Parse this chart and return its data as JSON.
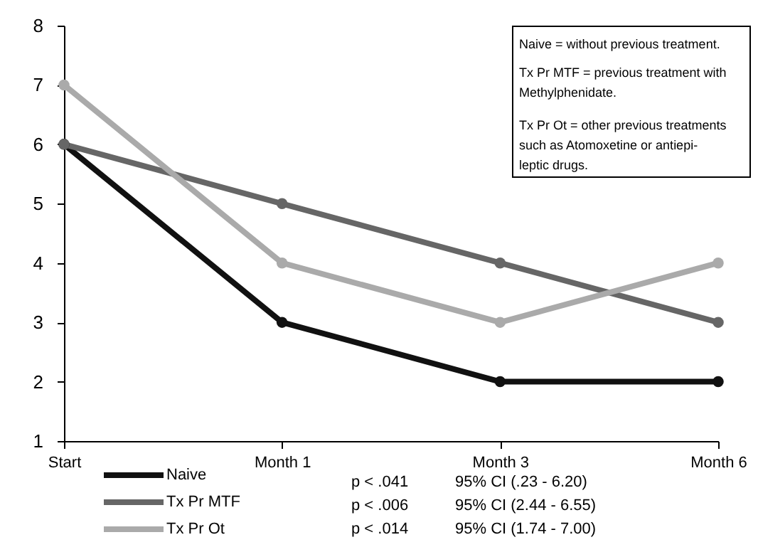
{
  "chart_data": {
    "type": "line",
    "categories": [
      "Start",
      "Month 1",
      "Month 3",
      "Month 6"
    ],
    "series": [
      {
        "name": "Naive",
        "color": "#111111",
        "values": [
          6,
          3,
          2,
          2
        ]
      },
      {
        "name": "Tx Pr MTF",
        "color": "#666666",
        "values": [
          6,
          5,
          4,
          3
        ]
      },
      {
        "name": "Tx Pr Ot",
        "color": "#aaaaaa",
        "values": [
          7,
          4,
          3,
          4
        ]
      }
    ],
    "ylim": [
      1,
      8
    ],
    "yticks": [
      1,
      2,
      3,
      4,
      5,
      6,
      7,
      8
    ],
    "grid": false,
    "legend": "bottom",
    "marker": "circle",
    "line_style": "solid",
    "annotations": [
      "Naive = without previous treatment.",
      "Tx Pr MTF = previous treatment with\nMethylphenidate.",
      "Tx Pr Ot = other previous treatments\nsuch as Atomoxetine or antiepi-\nleptic drugs.",
      "p < .041",
      "95% CI (.23 - 6.20)",
      "p < .006",
      "95% CI (2.44 - 6.55)",
      "p < .014",
      "95% CI (1.74 - 7.00)"
    ]
  }
}
